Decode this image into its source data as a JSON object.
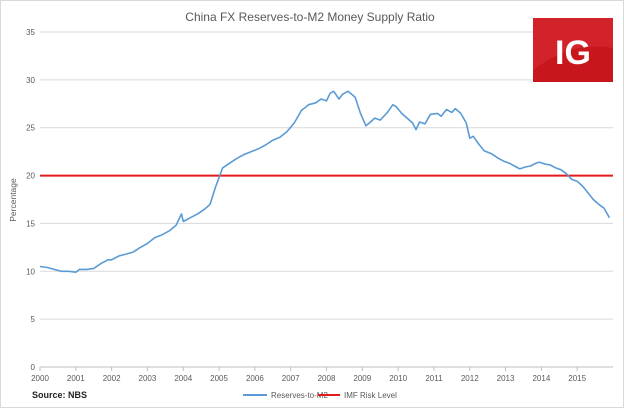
{
  "chart_data": {
    "type": "line",
    "title": "China FX Reserves-to-M2  Money Supply Ratio",
    "ylabel": "Percentage",
    "xlabel": "",
    "ylim": [
      0,
      35
    ],
    "xlim": [
      2000,
      2016
    ],
    "yticks": [
      "0",
      "5",
      "10",
      "15",
      "20",
      "25",
      "30",
      "35"
    ],
    "xticks": [
      "2000",
      "2001",
      "2002",
      "2003",
      "2004",
      "2005",
      "2006",
      "2007",
      "2008",
      "2009",
      "2010",
      "2011",
      "2012",
      "2013",
      "2014",
      "2015"
    ],
    "grid": true,
    "legend_position": "bottom-center",
    "series": [
      {
        "name": "Reserves-to-M2",
        "color": "#5b9bd5",
        "x": [
          2000.0,
          2000.2,
          2000.4,
          2000.6,
          2000.8,
          2001.0,
          2001.1,
          2001.3,
          2001.5,
          2001.7,
          2001.9,
          2002.0,
          2002.2,
          2002.4,
          2002.6,
          2002.8,
          2003.0,
          2003.2,
          2003.4,
          2003.6,
          2003.8,
          2003.95,
          2004.0,
          2004.2,
          2004.4,
          2004.6,
          2004.75,
          2004.9,
          2005.1,
          2005.3,
          2005.5,
          2005.7,
          2005.9,
          2006.1,
          2006.3,
          2006.5,
          2006.7,
          2006.9,
          2007.1,
          2007.3,
          2007.5,
          2007.7,
          2007.85,
          2008.0,
          2008.1,
          2008.2,
          2008.35,
          2008.45,
          2008.6,
          2008.8,
          2008.95,
          2009.1,
          2009.2,
          2009.35,
          2009.5,
          2009.7,
          2009.85,
          2009.95,
          2010.1,
          2010.25,
          2010.4,
          2010.5,
          2010.6,
          2010.75,
          2010.9,
          2011.1,
          2011.2,
          2011.35,
          2011.5,
          2011.6,
          2011.75,
          2011.9,
          2012.0,
          2012.1,
          2012.25,
          2012.4,
          2012.6,
          2012.8,
          2012.95,
          2013.1,
          2013.25,
          2013.4,
          2013.55,
          2013.7,
          2013.85,
          2013.95,
          2014.1,
          2014.25,
          2014.4,
          2014.55,
          2014.7,
          2014.85,
          2015.0,
          2015.15,
          2015.3,
          2015.45,
          2015.6,
          2015.75,
          2015.9
        ],
        "values": [
          10.5,
          10.4,
          10.2,
          10.0,
          10.0,
          9.9,
          10.2,
          10.2,
          10.3,
          10.8,
          11.2,
          11.2,
          11.6,
          11.8,
          12.0,
          12.5,
          12.9,
          13.5,
          13.8,
          14.2,
          14.8,
          16.0,
          15.2,
          15.6,
          16.0,
          16.5,
          17.0,
          18.8,
          20.8,
          21.3,
          21.8,
          22.2,
          22.5,
          22.8,
          23.2,
          23.7,
          24.0,
          24.6,
          25.5,
          26.8,
          27.4,
          27.6,
          28.0,
          27.8,
          28.6,
          28.8,
          28.0,
          28.5,
          28.8,
          28.2,
          26.5,
          25.2,
          25.5,
          26.0,
          25.8,
          26.6,
          27.4,
          27.2,
          26.5,
          26.0,
          25.5,
          24.8,
          25.6,
          25.4,
          26.4,
          26.5,
          26.2,
          26.9,
          26.6,
          27.0,
          26.5,
          25.5,
          23.9,
          24.1,
          23.3,
          22.6,
          22.3,
          21.8,
          21.5,
          21.3,
          21.0,
          20.7,
          20.9,
          21.0,
          21.3,
          21.4,
          21.2,
          21.1,
          20.8,
          20.6,
          20.2,
          19.6,
          19.4,
          18.9,
          18.2,
          17.5,
          17.0,
          16.6,
          15.6
        ]
      },
      {
        "name": "IMF Risk Level",
        "color": "#e41a1c",
        "x": [
          2000.0,
          2016.0
        ],
        "values": [
          20,
          20
        ]
      }
    ]
  },
  "source_text": "Source: NBS",
  "logo": {
    "text": "IG",
    "background": "#c8161d"
  }
}
